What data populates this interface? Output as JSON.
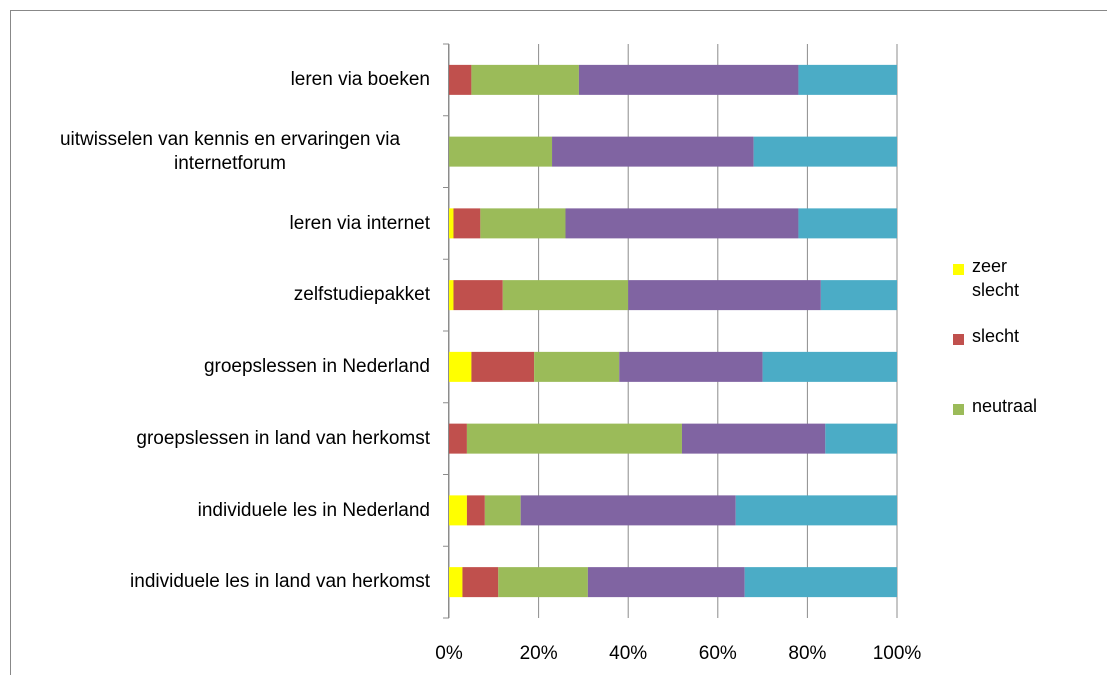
{
  "chart_data": {
    "type": "stacked-barh",
    "categories": [
      "leren via boeken",
      "uitwisselen van kennis en ervaringen via internetforum",
      "leren via internet",
      "zelfstudiepakket",
      "groepslessen in Nederland",
      "groepslessen in land van herkomst",
      "individuele les in Nederland",
      "individuele les in land van herkomst"
    ],
    "series": [
      {
        "name": "zeer slecht",
        "color": "#ffff00",
        "values": [
          0,
          0,
          1,
          1,
          5,
          0,
          4,
          3
        ]
      },
      {
        "name": "slecht",
        "color": "#c0504d",
        "values": [
          5,
          0,
          6,
          11,
          14,
          4,
          4,
          8
        ]
      },
      {
        "name": "neutraal",
        "color": "#9bbb59",
        "values": [
          24,
          23,
          19,
          28,
          19,
          48,
          8,
          20
        ]
      },
      {
        "color": "#8064a2",
        "values": [
          49,
          45,
          52,
          43,
          32,
          32,
          48,
          35
        ]
      },
      {
        "color": "#4bacc6",
        "values": [
          22,
          32,
          22,
          17,
          30,
          16,
          36,
          34
        ]
      }
    ],
    "xlim": [
      0,
      100
    ],
    "xticks": [
      {
        "value": 0,
        "label": "0%"
      },
      {
        "value": 20,
        "label": "20%"
      },
      {
        "value": 40,
        "label": "40%"
      },
      {
        "value": 60,
        "label": "60%"
      },
      {
        "value": 80,
        "label": "80%"
      },
      {
        "value": 100,
        "label": "100%"
      }
    ],
    "grid": true
  }
}
